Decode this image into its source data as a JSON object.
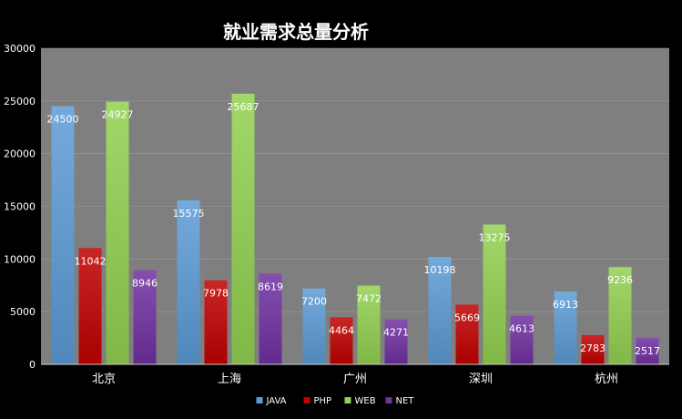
{
  "chart_data": {
    "type": "bar",
    "title": "就业需求总量分析",
    "categories": [
      "北京",
      "上海",
      "广州",
      "深圳",
      "杭州"
    ],
    "series": [
      {
        "name": "JAVA",
        "values": [
          24500,
          15575,
          7200,
          10198,
          6913
        ],
        "color": "#5b9bd5"
      },
      {
        "name": "PHP",
        "values": [
          11042,
          7978,
          4464,
          5669,
          2783
        ],
        "color": "#c00000"
      },
      {
        "name": "WEB",
        "values": [
          24927,
          25687,
          7472,
          13275,
          9236
        ],
        "color": "#92d050"
      },
      {
        "name": "NET",
        "values": [
          8946,
          8619,
          4271,
          4613,
          2517
        ],
        "color": "#7030a0"
      }
    ],
    "ylim": [
      0,
      30000
    ],
    "yticks": [
      "0",
      "5000",
      "10000",
      "15000",
      "20000",
      "25000",
      "30000"
    ],
    "grid": true,
    "legend_position": "bottom",
    "plot_background": "#7f7f7f",
    "page_background": "#000000"
  }
}
